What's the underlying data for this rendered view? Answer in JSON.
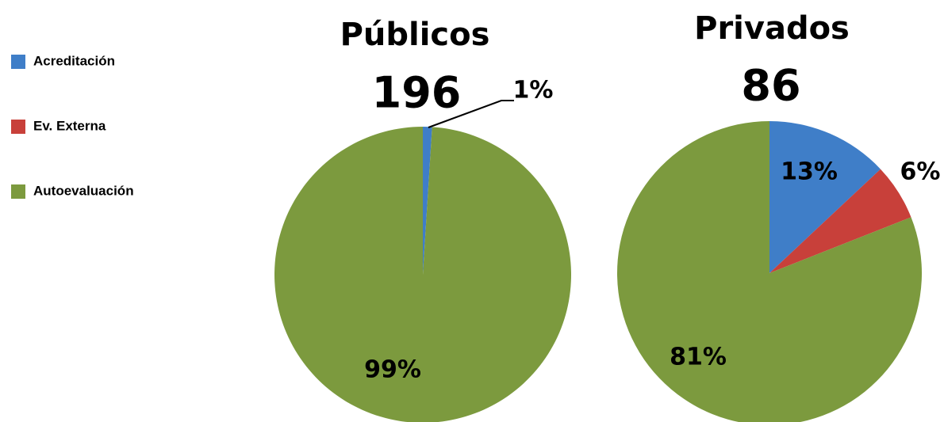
{
  "legend": [
    {
      "name": "Acreditación",
      "color": "#3f7ec8"
    },
    {
      "name": "Ev. Externa",
      "color": "#c8403a"
    },
    {
      "name": "Autoevaluación",
      "color": "#7c9a3e"
    }
  ],
  "chart_data": [
    {
      "type": "pie",
      "title": "Públicos",
      "subtitle": "196",
      "categories": [
        "Acreditación",
        "Ev. Externa",
        "Autoevaluación"
      ],
      "colors": [
        "#3f7ec8",
        "#c8403a",
        "#7c9a3e"
      ],
      "values": [
        1,
        0,
        99
      ],
      "value_labels": [
        "1%",
        null,
        "99%"
      ]
    },
    {
      "type": "pie",
      "title": "Privados",
      "subtitle": "86",
      "categories": [
        "Acreditación",
        "Ev. Externa",
        "Autoevaluación"
      ],
      "colors": [
        "#3f7ec8",
        "#c8403a",
        "#7c9a3e"
      ],
      "values": [
        13,
        6,
        81
      ],
      "value_labels": [
        "13%",
        "6%",
        "81%"
      ]
    }
  ]
}
